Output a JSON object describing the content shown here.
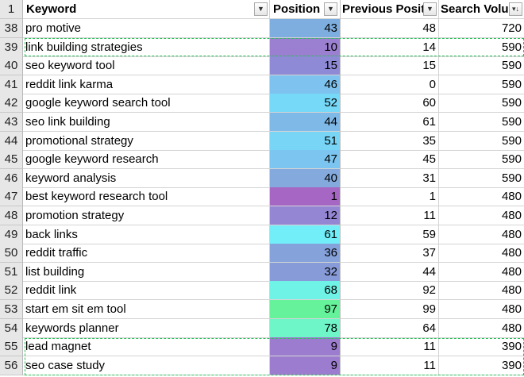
{
  "header": {
    "row_number": "1",
    "columns": [
      {
        "key": "keyword",
        "label": "Keyword",
        "filter_icon": "dropdown-arrow-icon"
      },
      {
        "key": "position",
        "label": "Position",
        "filter_icon": "dropdown-arrow-icon"
      },
      {
        "key": "previous_position",
        "label": "Previous Positi",
        "filter_icon": "dropdown-arrow-icon"
      },
      {
        "key": "search_volume",
        "label": "Search Volur",
        "filter_icon": "sort-descending-filter-icon"
      }
    ]
  },
  "rows": [
    {
      "row": "38",
      "keyword": "pro motive",
      "position": "43",
      "previous_position": "48",
      "search_volume": "720",
      "position_color": "#7eaedf"
    },
    {
      "row": "39",
      "keyword": "link building strategies",
      "position": "10",
      "previous_position": "14",
      "search_volume": "590",
      "position_color": "#9b7fd0"
    },
    {
      "row": "40",
      "keyword": "seo keyword tool",
      "position": "15",
      "previous_position": "15",
      "search_volume": "590",
      "position_color": "#8e8ad6"
    },
    {
      "row": "41",
      "keyword": "reddit link karma",
      "position": "46",
      "previous_position": "0",
      "search_volume": "590",
      "position_color": "#7ec3ef"
    },
    {
      "row": "42",
      "keyword": "google keyword search tool",
      "position": "52",
      "previous_position": "60",
      "search_volume": "590",
      "position_color": "#77d9f8"
    },
    {
      "row": "43",
      "keyword": "seo link building",
      "position": "44",
      "previous_position": "61",
      "search_volume": "590",
      "position_color": "#7fb9e8"
    },
    {
      "row": "44",
      "keyword": "promotional strategy",
      "position": "51",
      "previous_position": "35",
      "search_volume": "590",
      "position_color": "#78d5f6"
    },
    {
      "row": "45",
      "keyword": "google keyword research",
      "position": "47",
      "previous_position": "45",
      "search_volume": "590",
      "position_color": "#7cc5f0"
    },
    {
      "row": "46",
      "keyword": "keyword analysis",
      "position": "40",
      "previous_position": "31",
      "search_volume": "590",
      "position_color": "#83a9dd"
    },
    {
      "row": "47",
      "keyword": "best keyword research tool",
      "position": "1",
      "previous_position": "1",
      "search_volume": "480",
      "position_color": "#a566c4"
    },
    {
      "row": "48",
      "keyword": "promotion strategy",
      "position": "12",
      "previous_position": "11",
      "search_volume": "480",
      "position_color": "#9586d4"
    },
    {
      "row": "49",
      "keyword": "back links",
      "position": "61",
      "previous_position": "59",
      "search_volume": "480",
      "position_color": "#72eef9"
    },
    {
      "row": "50",
      "keyword": "reddit traffic",
      "position": "36",
      "previous_position": "37",
      "search_volume": "480",
      "position_color": "#85a2db"
    },
    {
      "row": "51",
      "keyword": "list building",
      "position": "32",
      "previous_position": "44",
      "search_volume": "480",
      "position_color": "#889bd9"
    },
    {
      "row": "52",
      "keyword": "reddit link",
      "position": "68",
      "previous_position": "92",
      "search_volume": "480",
      "position_color": "#6ff3e6"
    },
    {
      "row": "53",
      "keyword": "start em sit em tool",
      "position": "97",
      "previous_position": "99",
      "search_volume": "480",
      "position_color": "#66f29b"
    },
    {
      "row": "54",
      "keyword": "keywords planner",
      "position": "78",
      "previous_position": "64",
      "search_volume": "480",
      "position_color": "#6ef5c8"
    },
    {
      "row": "55",
      "keyword": "lead magnet",
      "position": "9",
      "previous_position": "11",
      "search_volume": "390",
      "position_color": "#9c7ccf"
    },
    {
      "row": "56",
      "keyword": "seo case study",
      "position": "9",
      "previous_position": "11",
      "search_volume": "390",
      "position_color": "#9c7ccf"
    }
  ],
  "highlight_color": "#2dbd5a"
}
